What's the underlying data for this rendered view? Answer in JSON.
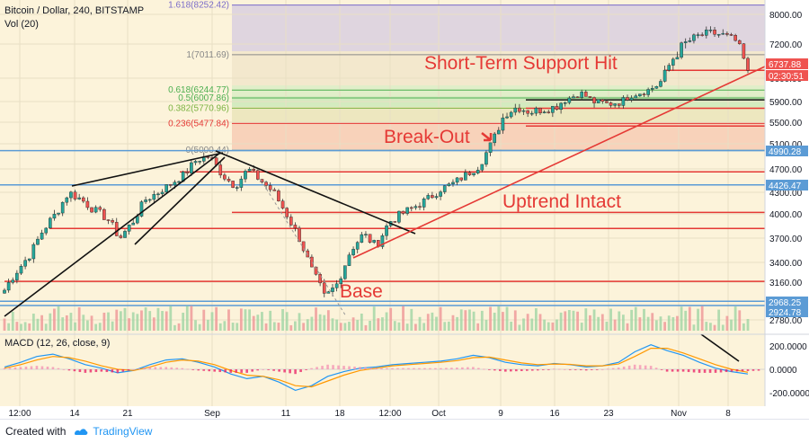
{
  "chart_data": {
    "type": "candlestick",
    "title": "Bitcoin / Dollar, 240, BITSTAMP",
    "volume_label": "Vol (20)",
    "ylim": [
      2700,
      8400
    ],
    "price_ticks": [
      "8000.00",
      "7200.00",
      "6600.00",
      "5900.00",
      "5500.00",
      "5100.00",
      "4700.00",
      "4300.00",
      "4000.00",
      "3700.00",
      "3400.00",
      "3160.00",
      "2780.00"
    ],
    "x_ticks": [
      "12:00",
      "14",
      "21",
      "Sep",
      "11",
      "18",
      "12:00",
      "Oct",
      "9",
      "16",
      "23",
      "Nov",
      "8"
    ],
    "price_badges": [
      {
        "text": "6737.88",
        "value": 6737.88,
        "color": "#ef5350"
      },
      {
        "text": "02:30:51",
        "value": 6600,
        "color": "#ef5350"
      },
      {
        "text": "4990.28",
        "value": 4990.28,
        "color": "#5b9bd5"
      },
      {
        "text": "4426.47",
        "value": 4426.47,
        "color": "#5b9bd5"
      },
      {
        "text": "2968.25",
        "value": 2968.25,
        "color": "#5b9bd5"
      },
      {
        "text": "2924.78",
        "value": 2924.78,
        "color": "#5b9bd5"
      }
    ],
    "fibonacci_levels": [
      {
        "label": "1.618(8252.42)",
        "value": 8252.42,
        "color": "#7b6cc9"
      },
      {
        "label": "1(7011.69)",
        "value": 7011.69,
        "color": "#888888"
      },
      {
        "label": "0.618(6244.77)",
        "value": 6244.77,
        "color": "#4caf50"
      },
      {
        "label": "0.5(6007.86)",
        "value": 6007.86,
        "color": "#4caf50"
      },
      {
        "label": "0.382(5770.96)",
        "value": 5770.96,
        "color": "#7cb342"
      },
      {
        "label": "0.236(5477.84)",
        "value": 5477.84,
        "color": "#e53935"
      },
      {
        "label": "0(5000.44)",
        "value": 5000.44,
        "color": "#888888"
      }
    ],
    "horizontal_lines": [
      6737.88,
      5950,
      5770,
      5430,
      4650,
      4020,
      3820,
      3170
    ],
    "blue_lines": [
      4990.28,
      4426.47,
      2968.25,
      2924.78
    ],
    "annotations": [
      "Short-Term Support Hit",
      "Break-Out",
      "Uptrend Intact",
      "Base"
    ],
    "price_path": [
      3080,
      3300,
      3500,
      3800,
      4000,
      4300,
      4200,
      4050,
      3950,
      3700,
      3900,
      4200,
      4300,
      4450,
      4600,
      4850,
      4900,
      4600,
      4400,
      4700,
      4500,
      4300,
      4000,
      3700,
      3300,
      3000,
      3150,
      3550,
      3750,
      3600,
      3900,
      4000,
      4100,
      4200,
      4350,
      4450,
      4600,
      4750,
      5100,
      5650,
      5800,
      5700,
      5750,
      5800,
      6000,
      6150,
      5900,
      5850,
      5900,
      6100,
      6200,
      6400,
      6900,
      7200,
      7400,
      7500,
      7450,
      7300,
      6737.88
    ],
    "macd": {
      "label": "MACD (12, 26, close, 9)",
      "ylim": [
        -300,
        300
      ],
      "ticks": [
        "200.0000",
        "0.0000",
        "-200.0000"
      ],
      "series": [
        {
          "name": "MACD",
          "color": "#2196f3",
          "values": [
            20,
            60,
            110,
            130,
            90,
            40,
            10,
            -30,
            -10,
            40,
            80,
            90,
            60,
            20,
            -40,
            -80,
            -60,
            -110,
            -180,
            -140,
            -60,
            -20,
            10,
            20,
            40,
            50,
            60,
            70,
            90,
            120,
            100,
            60,
            40,
            30,
            50,
            40,
            20,
            30,
            60,
            150,
            210,
            160,
            120,
            60,
            10,
            -20,
            -40
          ]
        },
        {
          "name": "Signal",
          "color": "#ff9800",
          "values": [
            10,
            40,
            80,
            110,
            100,
            70,
            30,
            0,
            -10,
            20,
            60,
            80,
            70,
            40,
            -10,
            -50,
            -60,
            -90,
            -140,
            -150,
            -100,
            -50,
            -10,
            10,
            30,
            40,
            50,
            60,
            75,
            100,
            105,
            80,
            55,
            40,
            45,
            42,
            30,
            30,
            45,
            110,
            180,
            180,
            140,
            90,
            40,
            0,
            -25
          ]
        }
      ]
    }
  },
  "footer": {
    "created": "Created with",
    "brand": "TradingView"
  }
}
